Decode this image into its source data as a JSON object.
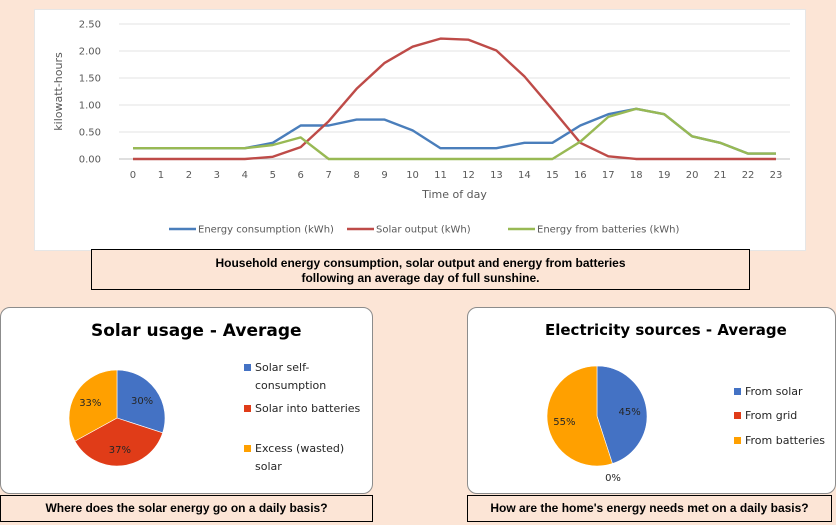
{
  "chart_data": [
    {
      "type": "line",
      "xlabel": "Time of day",
      "ylabel": "kilowatt-hours",
      "ylim": [
        0,
        2.5
      ],
      "yticks": [
        "0.00",
        "0.50",
        "1.00",
        "1.50",
        "2.00",
        "2.50"
      ],
      "x": [
        0,
        1,
        2,
        3,
        4,
        5,
        6,
        7,
        8,
        9,
        10,
        11,
        12,
        13,
        14,
        15,
        16,
        17,
        18,
        19,
        20,
        21,
        22,
        23
      ],
      "grid": true,
      "legend": "bottom",
      "series": [
        {
          "name": "Energy consumption (kWh)",
          "color": "#4a7ebb",
          "values": [
            0.2,
            0.2,
            0.2,
            0.2,
            0.2,
            0.3,
            0.62,
            0.62,
            0.73,
            0.73,
            0.53,
            0.2,
            0.2,
            0.2,
            0.3,
            0.3,
            0.62,
            0.83,
            0.93,
            0.83,
            0.42,
            0.3,
            0.1,
            0.1
          ]
        },
        {
          "name": "Solar output (kWh)",
          "color": "#be4b48",
          "values": [
            0,
            0,
            0,
            0,
            0,
            0.04,
            0.22,
            0.7,
            1.3,
            1.78,
            2.08,
            2.23,
            2.21,
            2.01,
            1.53,
            0.92,
            0.3,
            0.05,
            0,
            0,
            0,
            0,
            0,
            0
          ]
        },
        {
          "name": "Energy from batteries (kWh)",
          "color": "#98b954",
          "values": [
            0.2,
            0.2,
            0.2,
            0.2,
            0.2,
            0.26,
            0.4,
            0,
            0,
            0,
            0,
            0,
            0,
            0,
            0,
            0,
            0.32,
            0.78,
            0.93,
            0.83,
            0.42,
            0.3,
            0.1,
            0.1
          ]
        }
      ]
    },
    {
      "type": "pie",
      "title": "Solar usage - Average",
      "labels": [
        "Solar self-consumption",
        "Solar into batteries",
        "Excess (wasted) solar"
      ],
      "legend_lines": [
        [
          "Solar self-",
          "consumption"
        ],
        [
          "Solar into batteries"
        ],
        [
          "Excess (wasted)",
          "solar"
        ]
      ],
      "values": [
        30,
        37,
        33
      ],
      "data_labels": [
        "30%",
        "37%",
        "33%"
      ],
      "colors": [
        "#4472c4",
        "#e03c18",
        "#ffa000"
      ],
      "legend": "right"
    },
    {
      "type": "pie",
      "title": "Electricity sources - Average",
      "labels": [
        "From solar",
        "From grid",
        "From batteries"
      ],
      "legend_lines": [
        [
          "From solar"
        ],
        [
          "From grid"
        ],
        [
          "From batteries"
        ]
      ],
      "values": [
        45,
        0,
        55
      ],
      "data_labels": [
        "45%",
        "0%",
        "55%"
      ],
      "colors": [
        "#4472c4",
        "#e03c18",
        "#ffa000"
      ],
      "legend": "right"
    }
  ],
  "captions": {
    "line_line1": "Household energy consumption, solar output and energy from batteries",
    "line_line2": "following an average day of full sunshine.",
    "pie1": "Where does the solar energy go on a daily basis?",
    "pie2": "How are the home's energy needs met on a daily basis?"
  }
}
